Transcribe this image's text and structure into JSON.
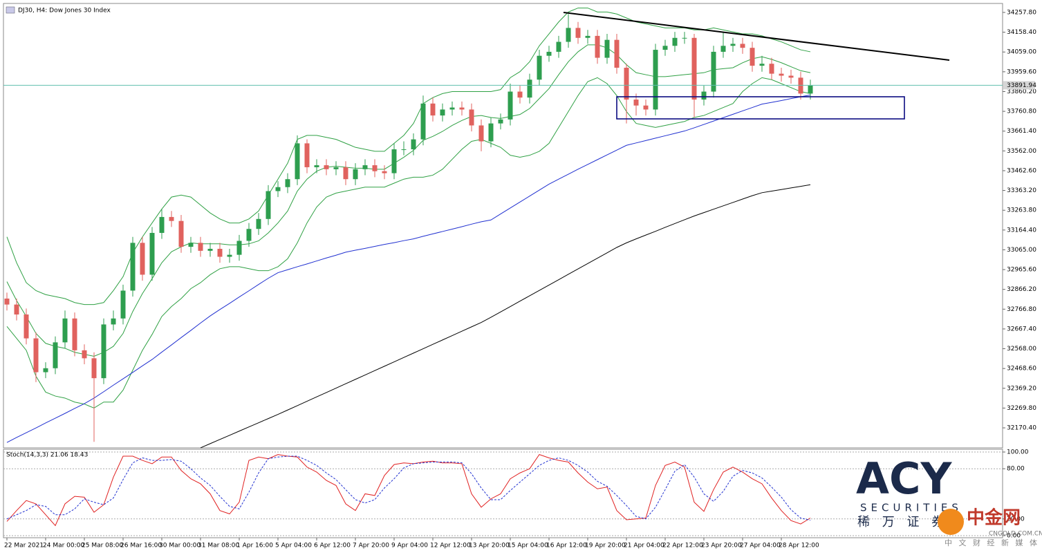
{
  "title": "DJ30, H4: Dow Jones 30 Index",
  "chart_data": [
    {
      "type": "candlestick",
      "x_labels": [
        "22 Mar 2021",
        "24 Mar 00:00",
        "25 Mar 08:00",
        "26 Mar 16:00",
        "30 Mar 00:00",
        "31 Mar 08:00",
        "1 Apr 16:00",
        "5 Apr 04:00",
        "6 Apr 12:00",
        "7 Apr 20:00",
        "9 Apr 04:00",
        "12 Apr 12:00",
        "13 Apr 20:00",
        "15 Apr 04:00",
        "16 Apr 12:00",
        "19 Apr 20:00",
        "21 Apr 04:00",
        "22 Apr 12:00",
        "23 Apr 20:00",
        "27 Apr 04:00",
        "28 Apr 12:00"
      ],
      "open": [
        32820,
        32790,
        32740,
        32620,
        32450,
        32470,
        32600,
        32720,
        32560,
        32520,
        32420,
        32690,
        32720,
        32860,
        33100,
        32940,
        33150,
        33230,
        33210,
        33080,
        33100,
        33060,
        33070,
        33030,
        33040,
        33110,
        33170,
        33220,
        33360,
        33380,
        33420,
        33600,
        33480,
        33490,
        33470,
        33480,
        33420,
        33470,
        33490,
        33460,
        33450,
        33570,
        33570,
        33620,
        33800,
        33740,
        33770,
        33780,
        33770,
        33690,
        33610,
        33700,
        33720,
        33860,
        33830,
        33920,
        34040,
        34060,
        34110,
        34180,
        34130,
        34140,
        34030,
        34120,
        33980,
        33820,
        33790,
        33770,
        34070,
        34090,
        34130,
        34130,
        33820,
        33860,
        34060,
        34090,
        34100,
        34080,
        33990,
        34000,
        33950,
        33940,
        33930,
        33850
      ],
      "high": [
        32850,
        32820,
        32770,
        32650,
        32500,
        32630,
        32760,
        32750,
        32590,
        32550,
        32720,
        32760,
        32890,
        33130,
        33130,
        33180,
        33270,
        33260,
        33240,
        33130,
        33130,
        33100,
        33100,
        33070,
        33140,
        33200,
        33250,
        33390,
        33410,
        33450,
        33640,
        33620,
        33520,
        33520,
        33510,
        33510,
        33500,
        33520,
        33520,
        33490,
        33600,
        33610,
        33650,
        33840,
        33830,
        33800,
        33810,
        33810,
        33800,
        33720,
        33730,
        33750,
        33900,
        33890,
        33950,
        34070,
        34090,
        34140,
        34250,
        34210,
        34170,
        34170,
        34150,
        34150,
        34000,
        33850,
        33820,
        34100,
        34120,
        34160,
        34160,
        34150,
        33890,
        34090,
        34160,
        34130,
        34130,
        34110,
        34040,
        34030,
        33980,
        33970,
        33960,
        33920
      ],
      "low": [
        32760,
        32710,
        32590,
        32400,
        32420,
        32440,
        32570,
        32530,
        32490,
        32100,
        32390,
        32660,
        32690,
        32830,
        32910,
        32910,
        33120,
        33180,
        33050,
        33050,
        33030,
        33030,
        33000,
        33000,
        33010,
        33080,
        33140,
        33190,
        33330,
        33350,
        33390,
        33450,
        33450,
        33440,
        33440,
        33390,
        33390,
        33440,
        33430,
        33420,
        33420,
        33540,
        33540,
        33590,
        33710,
        33710,
        33740,
        33740,
        33660,
        33560,
        33580,
        33670,
        33690,
        33800,
        33800,
        33890,
        34010,
        34030,
        34080,
        34100,
        34100,
        34000,
        34000,
        33950,
        33700,
        33740,
        33740,
        33740,
        34040,
        34060,
        34100,
        33730,
        33790,
        33830,
        34030,
        34060,
        34050,
        33960,
        33960,
        33920,
        33910,
        33900,
        33820,
        33820
      ],
      "close": [
        32790,
        32740,
        32620,
        32450,
        32470,
        32600,
        32720,
        32560,
        32520,
        32420,
        32690,
        32720,
        32860,
        33100,
        32940,
        33150,
        33230,
        33210,
        33080,
        33100,
        33060,
        33070,
        33030,
        33040,
        33110,
        33170,
        33220,
        33360,
        33380,
        33420,
        33600,
        33480,
        33490,
        33470,
        33480,
        33420,
        33470,
        33490,
        33460,
        33450,
        33570,
        33570,
        33620,
        33800,
        33740,
        33770,
        33780,
        33770,
        33690,
        33610,
        33700,
        33720,
        33860,
        33830,
        33920,
        34040,
        34060,
        34110,
        34180,
        34130,
        34140,
        34030,
        34120,
        33980,
        33820,
        33790,
        33770,
        34070,
        34090,
        34130,
        34130,
        33820,
        33860,
        34060,
        34090,
        34100,
        34080,
        33990,
        34000,
        33950,
        33940,
        33930,
        33850,
        33890
      ],
      "up_color": "#2e9e4f",
      "down_color": "#e0625e",
      "series": [
        {
          "color": "#2ea043",
          "values": [
            33130,
            33000,
            32900,
            32860,
            32840,
            32830,
            32820,
            32800,
            32790,
            32790,
            32800,
            32860,
            32930,
            33050,
            33130,
            33200,
            33270,
            33330,
            33340,
            33330,
            33290,
            33250,
            33220,
            33200,
            33200,
            33220,
            33260,
            33340,
            33420,
            33500,
            33620,
            33640,
            33640,
            33630,
            33620,
            33600,
            33580,
            33570,
            33560,
            33560,
            33600,
            33640,
            33700,
            33800,
            33830,
            33850,
            33860,
            33860,
            33860,
            33860,
            33860,
            33870,
            33930,
            33960,
            34010,
            34090,
            34150,
            34210,
            34260,
            34280,
            34280,
            34260,
            34260,
            34250,
            34230,
            34210,
            34200,
            34190,
            34180,
            34180,
            34180,
            34170,
            34170,
            34180,
            34170,
            34160,
            34150,
            34150,
            34140,
            34125,
            34110,
            34090,
            34070,
            34060
          ]
        },
        {
          "color": "#2ea043",
          "values": [
            32905,
            32810,
            32730,
            32645,
            32595,
            32580,
            32570,
            32550,
            32540,
            32530,
            32550,
            32580,
            32645,
            32755,
            32845,
            32920,
            33000,
            33055,
            33080,
            33100,
            33095,
            33095,
            33095,
            33090,
            33090,
            33095,
            33110,
            33150,
            33200,
            33260,
            33360,
            33420,
            33460,
            33480,
            33485,
            33480,
            33475,
            33475,
            33470,
            33470,
            33500,
            33530,
            33565,
            33615,
            33635,
            33660,
            33690,
            33715,
            33735,
            33740,
            33730,
            33725,
            33735,
            33745,
            33775,
            33825,
            33875,
            33945,
            34010,
            34060,
            34095,
            34095,
            34080,
            34045,
            33995,
            33955,
            33945,
            33935,
            33935,
            33940,
            33945,
            33950,
            33955,
            33970,
            33975,
            33980,
            34005,
            34025,
            34035,
            34022,
            34005,
            33985,
            33965,
            33955
          ]
        },
        {
          "color": "#2ea043",
          "values": [
            32680,
            32620,
            32560,
            32430,
            32350,
            32330,
            32320,
            32300,
            32290,
            32270,
            32300,
            32300,
            32360,
            32460,
            32560,
            32640,
            32730,
            32780,
            32820,
            32870,
            32900,
            32940,
            32970,
            32980,
            32980,
            32970,
            32960,
            32960,
            32980,
            33020,
            33100,
            33200,
            33280,
            33330,
            33350,
            33360,
            33370,
            33380,
            33380,
            33380,
            33400,
            33420,
            33430,
            33430,
            33440,
            33470,
            33520,
            33570,
            33610,
            33620,
            33600,
            33580,
            33540,
            33530,
            33540,
            33560,
            33600,
            33680,
            33760,
            33840,
            33910,
            33930,
            33900,
            33840,
            33760,
            33700,
            33690,
            33680,
            33690,
            33700,
            33710,
            33730,
            33740,
            33760,
            33780,
            33800,
            33860,
            33900,
            33930,
            33920,
            33900,
            33880,
            33860,
            33850
          ]
        },
        {
          "color": "#1f2fd0",
          "values": [
            32097,
            32122,
            32146,
            32170,
            32195,
            32219,
            32243,
            32268,
            32292,
            32320,
            32352,
            32385,
            32417,
            32449,
            32482,
            32514,
            32551,
            32587,
            32624,
            32660,
            32697,
            32733,
            32765,
            32796,
            32828,
            32859,
            32891,
            32922,
            32950,
            32965,
            32980,
            32994,
            33009,
            33024,
            33038,
            33053,
            33063,
            33072,
            33082,
            33092,
            33101,
            33111,
            33120,
            33133,
            33145,
            33157,
            33169,
            33181,
            33194,
            33206,
            33215,
            33245,
            33275,
            33305,
            33335,
            33365,
            33395,
            33420,
            33445,
            33470,
            33494,
            33518,
            33542,
            33566,
            33590,
            33602,
            33614,
            33626,
            33638,
            33650,
            33662,
            33678,
            33695,
            33712,
            33729,
            33746,
            33763,
            33780,
            33797,
            33806,
            33815,
            33825,
            33834,
            33843
          ]
        },
        {
          "color": "#000000",
          "values": [
            null,
            null,
            null,
            null,
            null,
            null,
            null,
            null,
            null,
            null,
            null,
            null,
            null,
            null,
            null,
            null,
            null,
            null,
            null,
            null,
            32070,
            32091,
            32112,
            32133,
            32154,
            32175,
            32196,
            32217,
            32238,
            32260,
            32282,
            32304,
            32326,
            32348,
            32370,
            32392,
            32414,
            32436,
            32458,
            32480,
            32502,
            32524,
            32546,
            32568,
            32590,
            32612,
            32634,
            32656,
            32678,
            32700,
            32726,
            32753,
            32780,
            32807,
            32834,
            32861,
            32888,
            32915,
            32942,
            32969,
            32996,
            33023,
            33050,
            33077,
            33100,
            33120,
            33139,
            33158,
            33178,
            33197,
            33216,
            33235,
            33252,
            33269,
            33286,
            33303,
            33320,
            33337,
            33352,
            33360,
            33368,
            33376,
            33384,
            33392
          ]
        }
      ],
      "ylim": [
        32069.8,
        34302.9
      ],
      "yticks": [
        {
          "value": 34257.8,
          "label": "34257.80"
        },
        {
          "value": 34158.4,
          "label": "34158.40"
        },
        {
          "value": 34059,
          "label": "34059.00"
        },
        {
          "value": 33959.6,
          "label": "33959.60"
        },
        {
          "value": 33860.2,
          "label": "33860.20"
        },
        {
          "value": 33760.8,
          "label": "33760.80"
        },
        {
          "value": 33661.4,
          "label": "33661.40"
        },
        {
          "value": 33562,
          "label": "33562.00"
        },
        {
          "value": 33462.6,
          "label": "33462.60"
        },
        {
          "value": 33363.2,
          "label": "33363.20"
        },
        {
          "value": 33263.8,
          "label": "33263.80"
        },
        {
          "value": 33164.4,
          "label": "33164.40"
        },
        {
          "value": 33065,
          "label": "33065.00"
        },
        {
          "value": 32965.6,
          "label": "32965.60"
        },
        {
          "value": 32866.2,
          "label": "32866.20"
        },
        {
          "value": 32766.8,
          "label": "32766.80"
        },
        {
          "value": 32667.4,
          "label": "32667.40"
        },
        {
          "value": 32568,
          "label": "32568.00"
        },
        {
          "value": 32468.6,
          "label": "32468.60"
        },
        {
          "value": 32369.2,
          "label": "32369.20"
        },
        {
          "value": 32269.8,
          "label": "32269.80"
        },
        {
          "value": 32170.4,
          "label": "32170.40"
        }
      ],
      "last_price": {
        "value": 33891.94,
        "label": "33891.94",
        "color": "#5fbfae"
      }
    },
    {
      "type": "line",
      "title": "Stoch(14,3,3) 21.06 18.43",
      "series": [
        {
          "color": "#e02020",
          "dash": false,
          "values": [
            17,
            30,
            42,
            38,
            25,
            12,
            38,
            47,
            46,
            28,
            37,
            70,
            95,
            95,
            90,
            86,
            94,
            94,
            78,
            68,
            62,
            50,
            30,
            26,
            40,
            90,
            94,
            92,
            97,
            95,
            94,
            82,
            76,
            66,
            60,
            38,
            30,
            50,
            48,
            72,
            85,
            87,
            86,
            88,
            89,
            87,
            87,
            86,
            50,
            34,
            44,
            50,
            68,
            75,
            80,
            97,
            93,
            90,
            88,
            75,
            64,
            56,
            58,
            30,
            19,
            20,
            21,
            60,
            84,
            88,
            82,
            40,
            29,
            55,
            76,
            82,
            76,
            68,
            62,
            45,
            30,
            18,
            14,
            21.06
          ]
        },
        {
          "color": "#2030d0",
          "dash": true,
          "values": [
            20,
            25,
            30,
            37,
            35,
            25,
            25,
            32,
            44,
            40,
            37,
            45,
            67,
            87,
            93,
            90,
            90,
            91,
            89,
            80,
            69,
            60,
            47,
            35,
            32,
            52,
            75,
            92,
            94,
            95,
            95,
            90,
            84,
            75,
            67,
            55,
            43,
            39,
            43,
            57,
            68,
            81,
            86,
            87,
            88,
            88,
            88,
            87,
            74,
            57,
            43,
            43,
            54,
            64,
            74,
            84,
            90,
            93,
            90,
            84,
            76,
            65,
            59,
            48,
            36,
            23,
            20,
            34,
            55,
            77,
            85,
            70,
            50,
            41,
            53,
            71,
            78,
            75,
            69,
            58,
            46,
            31,
            21,
            18.43
          ]
        }
      ],
      "ylim": [
        -2.5,
        103.3
      ],
      "yticks": [
        {
          "value": 100,
          "label": "100.00"
        },
        {
          "value": 80,
          "label": "80.00"
        },
        {
          "value": 20,
          "label": "20.00"
        },
        {
          "value": 0,
          "label": "0.00"
        }
      ],
      "grid": true
    }
  ],
  "branding": {
    "logo": "ACY",
    "tagline": "SECURITIES",
    "chinese": "稀 万 证 券"
  },
  "watermark": {
    "name": "中金网",
    "site": "CNGOLD.COM.CN",
    "slogan": "中 文 财 经 新 媒 体"
  }
}
